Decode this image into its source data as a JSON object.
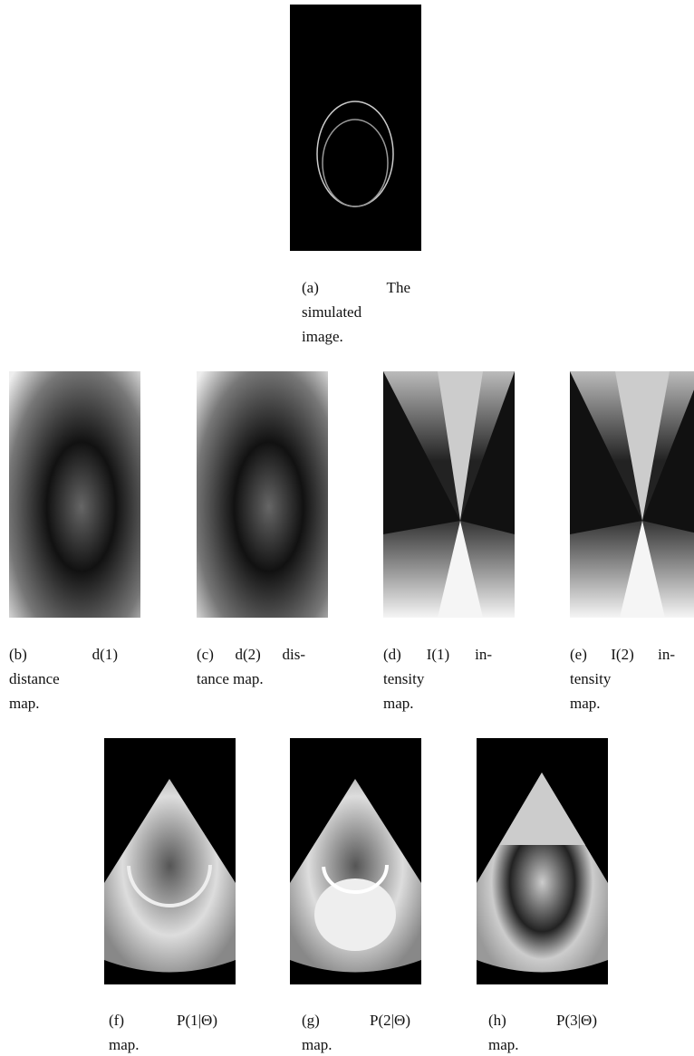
{
  "subfigures": [
    {
      "caption_lines": [
        "(a) The",
        "simulated",
        "image."
      ]
    },
    {
      "caption_lines": [
        "(b) d(1)",
        "distance",
        "map."
      ]
    },
    {
      "caption_lines": [
        "(c) d(2) dis-",
        "tance map."
      ]
    },
    {
      "caption_lines": [
        "(d) I(1) in-",
        "tensity",
        "map."
      ]
    },
    {
      "caption_lines": [
        "(e) I(2) in-",
        "tensity",
        "map."
      ]
    },
    {
      "caption_lines": [
        "(f) P(1|Θ)",
        "map."
      ]
    },
    {
      "caption_lines": [
        "(g) P(2|Θ)",
        "map."
      ]
    },
    {
      "caption_lines": [
        "(h) P(3|Θ)",
        "map."
      ]
    }
  ]
}
